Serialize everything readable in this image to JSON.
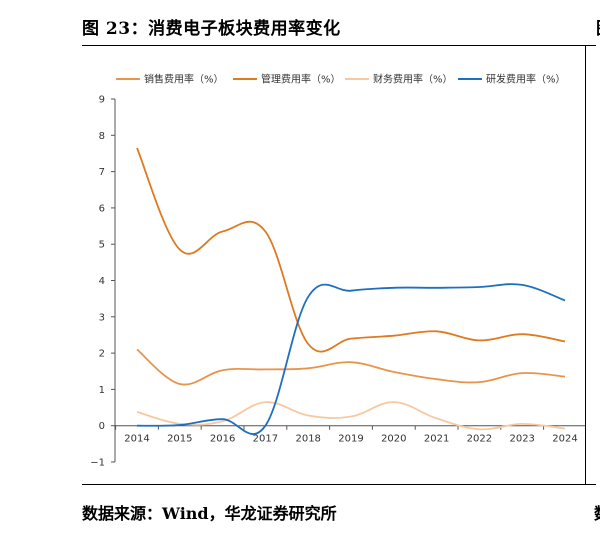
{
  "figure": {
    "title": "图 23：消费电子板块费用率变化",
    "source": "数据来源：Wind，华龙证券研究所",
    "right_title_fragment": "图",
    "right_source_fragment": "数"
  },
  "chart_data": {
    "type": "line",
    "title": "",
    "xlabel": "",
    "ylabel": "",
    "ylim": [
      -1,
      9
    ],
    "yticks": [
      "-1",
      "0",
      "1",
      "2",
      "3",
      "4",
      "5",
      "6",
      "7",
      "8",
      "9"
    ],
    "categories": [
      "2014",
      "2015",
      "2016",
      "2017",
      "2018",
      "2019",
      "2020",
      "2021",
      "2022",
      "2023",
      "2024"
    ],
    "legend_position": "top",
    "grid": false,
    "series": [
      {
        "name": "销售费用率（%）",
        "color": "#e8954c",
        "values": [
          2.1,
          1.15,
          1.53,
          1.55,
          1.58,
          1.75,
          1.48,
          1.28,
          1.2,
          1.45,
          1.35
        ]
      },
      {
        "name": "管理费用率（%）",
        "color": "#de7a20",
        "values": [
          7.65,
          4.85,
          5.35,
          5.35,
          2.25,
          2.4,
          2.48,
          2.6,
          2.35,
          2.52,
          2.32
        ]
      },
      {
        "name": "财务费用率（%）",
        "color": "#f6c9a0",
        "values": [
          0.38,
          0.05,
          0.12,
          0.65,
          0.28,
          0.25,
          0.65,
          0.2,
          -0.1,
          0.05,
          -0.08
        ]
      },
      {
        "name": "研发费用率（%）",
        "color": "#1f6fc0",
        "values": [
          0.0,
          0.02,
          0.18,
          0.0,
          3.55,
          3.72,
          3.8,
          3.8,
          3.82,
          3.88,
          3.45
        ]
      }
    ]
  }
}
